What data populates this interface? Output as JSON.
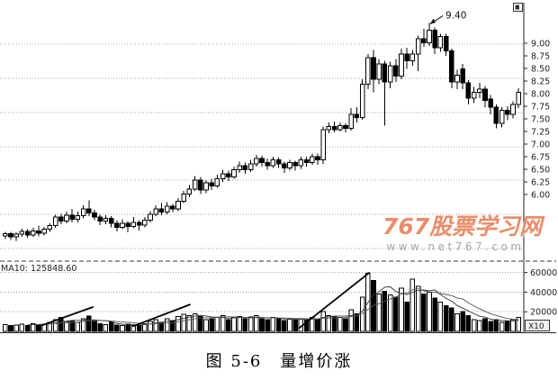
{
  "watermark": {
    "title": "767股票学习网",
    "url": "www.net767.com",
    "title_color": "#ec8c66",
    "url_color": "#a6a6a6"
  },
  "caption": "图 5-6　量增价涨",
  "window_icon": "window-restore",
  "chart_data": {
    "type": "candlestick+volume",
    "title": "图 5-6 量增价涨",
    "price_axis": {
      "labels": [
        "9.00",
        "8.75",
        "8.50",
        "8.25",
        "8.00",
        "7.75",
        "7.50",
        "7.25",
        "7.00",
        "6.75",
        "6.50",
        "6.25",
        "6.00"
      ],
      "tick_step": 0.25,
      "visible_min": 4.7,
      "visible_max": 9.7
    },
    "volume_axis": {
      "labels": [
        60000,
        40000,
        20000
      ],
      "unit": "X10",
      "visible_max": 68000
    },
    "indicator_label": "MA10: 125848.60",
    "annotation": {
      "text": "9.40",
      "price": 9.4,
      "candle_index": 76
    },
    "candles": [
      [
        5.18,
        5.22,
        5.12,
        5.26
      ],
      [
        5.22,
        5.16,
        5.1,
        5.26
      ],
      [
        5.16,
        5.21,
        5.08,
        5.25
      ],
      [
        5.21,
        5.27,
        5.16,
        5.32
      ],
      [
        5.27,
        5.2,
        5.14,
        5.31
      ],
      [
        5.2,
        5.28,
        5.16,
        5.34
      ],
      [
        5.28,
        5.23,
        5.17,
        5.38
      ],
      [
        5.23,
        5.31,
        5.19,
        5.36
      ],
      [
        5.31,
        5.38,
        5.26,
        5.43
      ],
      [
        5.38,
        5.55,
        5.34,
        5.6
      ],
      [
        5.55,
        5.47,
        5.41,
        5.62
      ],
      [
        5.47,
        5.59,
        5.43,
        5.66
      ],
      [
        5.59,
        5.51,
        5.45,
        5.71
      ],
      [
        5.51,
        5.58,
        5.45,
        5.66
      ],
      [
        5.58,
        5.71,
        5.53,
        5.79
      ],
      [
        5.71,
        5.63,
        5.57,
        5.88
      ],
      [
        5.63,
        5.55,
        5.49,
        5.7
      ],
      [
        5.55,
        5.47,
        5.39,
        5.61
      ],
      [
        5.47,
        5.53,
        5.41,
        5.59
      ],
      [
        5.53,
        5.43,
        5.35,
        5.57
      ],
      [
        5.43,
        5.35,
        5.27,
        5.49
      ],
      [
        5.35,
        5.43,
        5.31,
        5.51
      ],
      [
        5.43,
        5.37,
        5.25,
        5.47
      ],
      [
        5.37,
        5.45,
        5.33,
        5.55
      ],
      [
        5.45,
        5.39,
        5.29,
        5.49
      ],
      [
        5.39,
        5.49,
        5.35,
        5.55
      ],
      [
        5.49,
        5.61,
        5.45,
        5.67
      ],
      [
        5.61,
        5.71,
        5.57,
        5.79
      ],
      [
        5.71,
        5.65,
        5.59,
        5.83
      ],
      [
        5.65,
        5.77,
        5.61,
        5.85
      ],
      [
        5.77,
        5.71,
        5.65,
        5.81
      ],
      [
        5.71,
        5.87,
        5.67,
        5.93
      ],
      [
        5.87,
        6.01,
        5.83,
        6.07
      ],
      [
        6.01,
        6.11,
        5.95,
        6.19
      ],
      [
        6.11,
        6.29,
        6.07,
        6.37
      ],
      [
        6.29,
        6.09,
        6.01,
        6.35
      ],
      [
        6.09,
        6.23,
        6.03,
        6.29
      ],
      [
        6.23,
        6.17,
        6.09,
        6.31
      ],
      [
        6.17,
        6.31,
        6.13,
        6.39
      ],
      [
        6.31,
        6.41,
        6.25,
        6.49
      ],
      [
        6.41,
        6.35,
        6.27,
        6.47
      ],
      [
        6.35,
        6.49,
        6.31,
        6.55
      ],
      [
        6.49,
        6.57,
        6.43,
        6.65
      ],
      [
        6.57,
        6.49,
        6.41,
        6.63
      ],
      [
        6.49,
        6.61,
        6.45,
        6.69
      ],
      [
        6.61,
        6.71,
        6.55,
        6.79
      ],
      [
        6.71,
        6.63,
        6.55,
        6.77
      ],
      [
        6.63,
        6.57,
        6.49,
        6.71
      ],
      [
        6.57,
        6.69,
        6.53,
        6.75
      ],
      [
        6.69,
        6.61,
        6.53,
        6.73
      ],
      [
        6.61,
        6.53,
        6.43,
        6.65
      ],
      [
        6.53,
        6.63,
        6.47,
        6.69
      ],
      [
        6.63,
        6.57,
        6.47,
        6.67
      ],
      [
        6.57,
        6.69,
        6.51,
        6.75
      ],
      [
        6.69,
        6.63,
        6.55,
        6.75
      ],
      [
        6.63,
        6.75,
        6.59,
        6.81
      ],
      [
        6.75,
        6.69,
        6.59,
        6.81
      ],
      [
        6.69,
        7.29,
        6.61,
        7.35
      ],
      [
        7.29,
        7.35,
        7.21,
        7.43
      ],
      [
        7.35,
        7.29,
        7.23,
        7.45
      ],
      [
        7.29,
        7.37,
        7.25,
        7.43
      ],
      [
        7.37,
        7.31,
        7.23,
        7.41
      ],
      [
        7.31,
        7.59,
        7.27,
        7.71
      ],
      [
        7.59,
        7.53,
        7.43,
        7.73
      ],
      [
        7.53,
        8.19,
        7.48,
        8.29
      ],
      [
        8.19,
        8.71,
        8.09,
        8.79
      ],
      [
        8.71,
        8.29,
        8.03,
        8.87
      ],
      [
        8.29,
        8.59,
        8.19,
        8.69
      ],
      [
        8.59,
        8.23,
        7.37,
        8.65
      ],
      [
        8.23,
        8.55,
        8.11,
        8.63
      ],
      [
        8.55,
        8.35,
        8.23,
        8.69
      ],
      [
        8.35,
        8.79,
        8.29,
        8.89
      ],
      [
        8.79,
        8.65,
        8.49,
        8.91
      ],
      [
        8.65,
        8.79,
        8.55,
        8.87
      ],
      [
        8.79,
        9.09,
        8.45,
        9.15
      ],
      [
        9.09,
        9.01,
        8.93,
        9.29
      ],
      [
        9.01,
        9.26,
        8.95,
        9.4
      ],
      [
        9.26,
        8.91,
        8.79,
        9.31
      ],
      [
        8.91,
        9.13,
        8.83,
        9.19
      ],
      [
        9.13,
        8.85,
        8.75,
        9.19
      ],
      [
        8.85,
        8.23,
        8.11,
        8.89
      ],
      [
        8.23,
        8.37,
        8.09,
        8.47
      ],
      [
        8.49,
        8.21,
        8.09,
        8.59
      ],
      [
        8.21,
        7.91,
        7.79,
        8.27
      ],
      [
        7.91,
        8.03,
        7.81,
        8.13
      ],
      [
        8.03,
        8.09,
        7.91,
        8.21
      ],
      [
        8.09,
        7.87,
        7.73,
        8.15
      ],
      [
        7.89,
        7.73,
        7.59,
        7.97
      ],
      [
        7.73,
        7.41,
        7.31,
        7.79
      ],
      [
        7.41,
        7.67,
        7.33,
        7.73
      ],
      [
        7.67,
        7.59,
        7.47,
        7.75
      ],
      [
        7.59,
        7.79,
        7.51,
        7.85
      ],
      [
        7.79,
        8.03,
        7.71,
        8.11
      ]
    ],
    "volumes": [
      7000,
      6000,
      6500,
      7500,
      6000,
      8000,
      7000,
      7500,
      9000,
      12000,
      14000,
      10000,
      11000,
      9000,
      13000,
      15500,
      10000,
      8000,
      7000,
      9000,
      6500,
      6000,
      7500,
      6000,
      6500,
      8000,
      10000,
      12000,
      9000,
      13000,
      11000,
      15000,
      17500,
      16000,
      18000,
      15000,
      12000,
      13000,
      14000,
      16000,
      12000,
      14000,
      15000,
      13000,
      14500,
      16000,
      13000,
      12000,
      14000,
      13500,
      11000,
      12500,
      11500,
      13000,
      12000,
      14000,
      12500,
      20000,
      16000,
      15000,
      14000,
      13000,
      22000,
      18000,
      35000,
      59000,
      52000,
      38000,
      41000,
      37000,
      35000,
      44000,
      30000,
      53000,
      46000,
      38000,
      40000,
      34000,
      30000,
      26000,
      24000,
      18000,
      20000,
      16000,
      12000,
      11000,
      13000,
      10000,
      12000,
      9000,
      10000,
      12000,
      14000
    ],
    "volume_ma_periods": [
      5,
      10
    ],
    "volume_trendlines": [
      [
        6.5,
        6000,
        15.8,
        25000
      ],
      [
        22.8,
        5000,
        33.2,
        27500
      ],
      [
        52.6,
        3000,
        65.3,
        60000
      ]
    ]
  }
}
